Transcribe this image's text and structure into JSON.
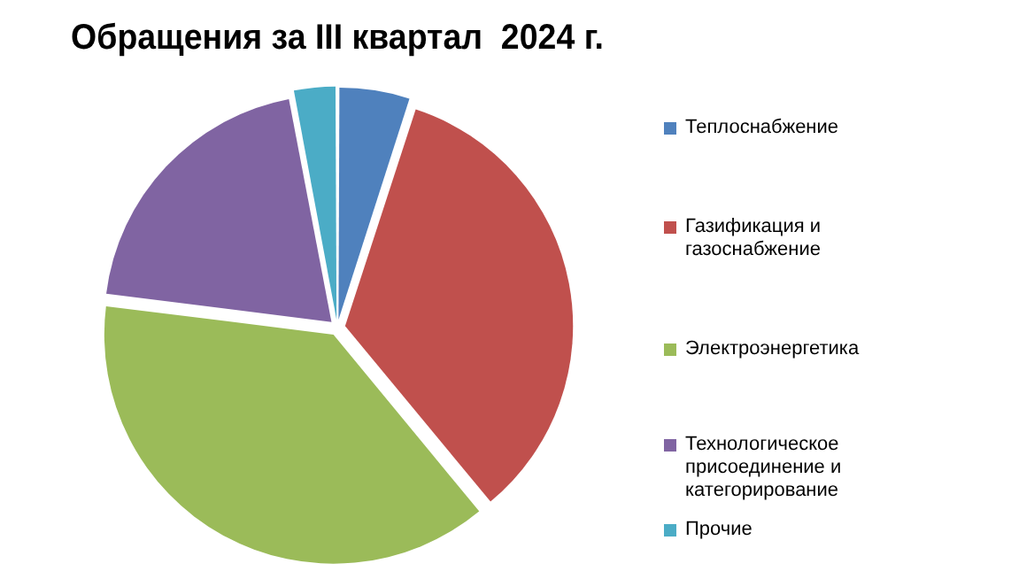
{
  "chart_data": {
    "type": "pie",
    "title": "Обращения за III квартал  2024 г.",
    "categories": [
      "Теплоснабжение",
      "Газификация и газоснабжение",
      "Электроэнергетика",
      "Технологическое присоединение  и категорирование",
      "Прочие"
    ],
    "values": [
      5,
      34,
      38,
      20,
      3
    ],
    "colors": [
      "#4f81bd",
      "#c0504d",
      "#9bbb59",
      "#8064a2",
      "#4bacc6"
    ],
    "legend": "right"
  }
}
